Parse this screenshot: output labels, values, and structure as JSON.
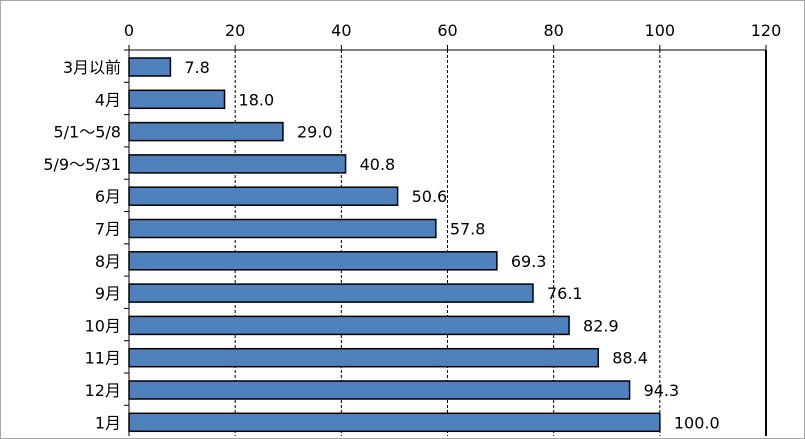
{
  "chart_data": {
    "type": "bar",
    "orientation": "horizontal",
    "title": "",
    "xlabel": "",
    "ylabel": "",
    "categories": [
      "3月以前",
      "4月",
      "5/1〜5/8",
      "5/9〜5/31",
      "6月",
      "7月",
      "8月",
      "9月",
      "10月",
      "11月",
      "12月",
      "1月"
    ],
    "values": [
      7.8,
      18.0,
      29.0,
      40.8,
      50.6,
      57.8,
      69.3,
      76.1,
      82.9,
      88.4,
      94.3,
      100.0
    ],
    "data_labels": [
      "7.8",
      "18.0",
      "29.0",
      "40.8",
      "50.6",
      "57.8",
      "69.3",
      "76.1",
      "82.9",
      "88.4",
      "94.3",
      "100.0"
    ],
    "xlim": [
      0,
      120
    ],
    "x_ticks": [
      0,
      20,
      40,
      60,
      80,
      100,
      120
    ],
    "x_tick_labels": [
      "0",
      "20",
      "40",
      "60",
      "80",
      "100",
      "120"
    ],
    "x_axis_position": "top",
    "grid": "vertical-dashed",
    "legend": "none",
    "bar_color": "#4f81bd",
    "bar_edge_color": "#000000"
  }
}
